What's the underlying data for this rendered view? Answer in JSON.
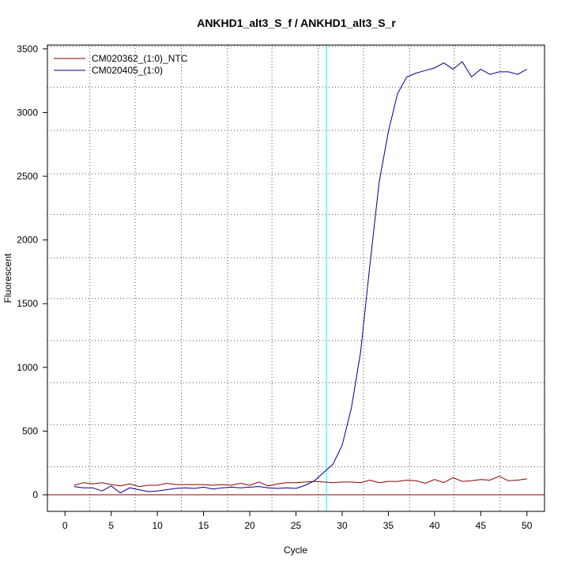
{
  "chart_data": {
    "type": "line",
    "title": "ANKHD1_alt3_S_f / ANKHD1_alt3_S_r",
    "xlabel": "Cycle",
    "ylabel": "Fluorescent",
    "xlim": [
      -1.9,
      51.9
    ],
    "ylim": [
      -130,
      3530
    ],
    "xticks": [
      0,
      5,
      10,
      15,
      20,
      25,
      30,
      35,
      40,
      45,
      50
    ],
    "yticks": [
      0,
      500,
      1000,
      1500,
      2000,
      2500,
      3000,
      3500
    ],
    "grid": true,
    "legend_position": "top-left",
    "threshold_line": {
      "y": 0,
      "color": "#8b0000"
    },
    "ct_line": {
      "x": 28.3,
      "color": "#00ffff"
    },
    "vertical_dotted_x": [
      2.7,
      7.6,
      12.6,
      17.6,
      22.4,
      27.4,
      32.3,
      37.3,
      42.1,
      47.1
    ],
    "horizontal_dotted_y": [
      220,
      550,
      880,
      1210,
      1540,
      1860,
      2200,
      2520,
      2860,
      3200,
      3520
    ],
    "x": [
      1,
      2,
      3,
      4,
      5,
      6,
      7,
      8,
      9,
      10,
      11,
      12,
      13,
      14,
      15,
      16,
      17,
      18,
      19,
      20,
      21,
      22,
      23,
      24,
      25,
      26,
      27,
      28,
      29,
      30,
      31,
      32,
      33,
      34,
      35,
      36,
      37,
      38,
      39,
      40,
      41,
      42,
      43,
      44,
      45,
      46,
      47,
      48,
      49,
      50
    ],
    "series": [
      {
        "name": "CM020362_(1:0)_NTC",
        "color": "#8b0000",
        "values": [
          75,
          95,
          85,
          95,
          80,
          70,
          85,
          65,
          75,
          75,
          90,
          80,
          80,
          80,
          80,
          75,
          80,
          75,
          90,
          75,
          100,
          70,
          85,
          95,
          95,
          100,
          105,
          100,
          95,
          100,
          100,
          95,
          115,
          95,
          105,
          105,
          115,
          110,
          90,
          120,
          95,
          135,
          105,
          110,
          120,
          115,
          145,
          110,
          115,
          125
        ]
      },
      {
        "name": "CM020405_(1:0)",
        "color": "#00008b",
        "values": [
          65,
          55,
          55,
          30,
          70,
          15,
          55,
          40,
          25,
          30,
          40,
          50,
          55,
          50,
          60,
          45,
          55,
          60,
          55,
          60,
          65,
          55,
          50,
          55,
          50,
          75,
          110,
          175,
          240,
          390,
          680,
          1120,
          1800,
          2450,
          2850,
          3150,
          3280,
          3310,
          3330,
          3350,
          3390,
          3340,
          3400,
          3280,
          3340,
          3300,
          3320,
          3320,
          3300,
          3340
        ]
      }
    ]
  }
}
